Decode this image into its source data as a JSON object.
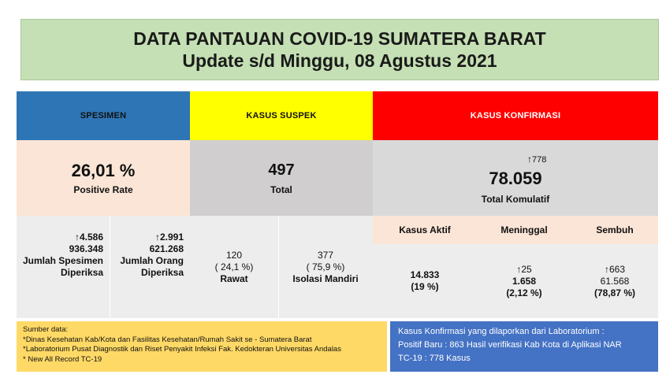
{
  "header": {
    "title": "DATA PANTAUAN COVID-19 SUMATERA BARAT",
    "subtitle": "Update s/d Minggu, 08 Agustus 2021"
  },
  "columns": {
    "spesimen": "SPESIMEN",
    "suspek": "KASUS SUSPEK",
    "konfirmasi": "KASUS KONFIRMASI"
  },
  "positive_rate": {
    "value": "26,01 %",
    "label": "Positive Rate"
  },
  "suspek_total": {
    "value": "497",
    "label": "Total"
  },
  "konfirmasi_total": {
    "increase": "778",
    "value": "78.059",
    "label": "Total Komulatif"
  },
  "spesimen_detail": [
    {
      "increase": "4.586",
      "value": "936.348",
      "label_line1": "Jumlah Spesimen",
      "label_line2": "Diperiksa"
    },
    {
      "increase": "2.991",
      "value": "621.268",
      "label_line1": "Jumlah Orang",
      "label_line2": "Diperiksa"
    }
  ],
  "suspek_detail": [
    {
      "value": "120",
      "percent": "( 24,1 %)",
      "label": "Rawat"
    },
    {
      "value": "377",
      "percent": "( 75,9 %)",
      "label": "Isolasi Mandiri"
    }
  ],
  "konfirmasi_detail": [
    {
      "label": "Kasus Aktif",
      "increase": "",
      "value": "14.833",
      "percent": "(19 %)"
    },
    {
      "label": "Meninggal",
      "increase": "25",
      "value": "1.658",
      "percent": "(2,12 %)"
    },
    {
      "label": "Sembuh",
      "increase": "663",
      "value": "61.568",
      "percent": "(78,87 %)"
    }
  ],
  "arrow_icon": "up-arrow-icon",
  "footer_left": {
    "title": "Sumber data:",
    "lines": [
      "*Dinas Kesehatan Kab/Kota  dan Fasilitas Kesehatan/Rumah Sakit se - Sumatera Barat",
      "*Laboratorium  Pusat Diagnostik dan Riset  Penyakit Infeksi Fak. Kedokteran Universitas Andalas",
      "* New All Record TC-19"
    ]
  },
  "footer_right": {
    "lines": [
      "Kasus Konfirmasi yang dilaporkan dari Laboratorium :",
      "Positif Baru : 863 Hasil verifikasi Kab Kota di Aplikasi NAR",
      "TC-19 : 778 Kasus"
    ]
  },
  "colors": {
    "header_bg": "#c5e0b4",
    "spesimen": "#2e75b6",
    "suspek": "#ffff00",
    "konfirmasi": "#ff0000",
    "peach": "#fbe5d6",
    "footer_left": "#ffd966",
    "footer_right": "#4472c4"
  }
}
